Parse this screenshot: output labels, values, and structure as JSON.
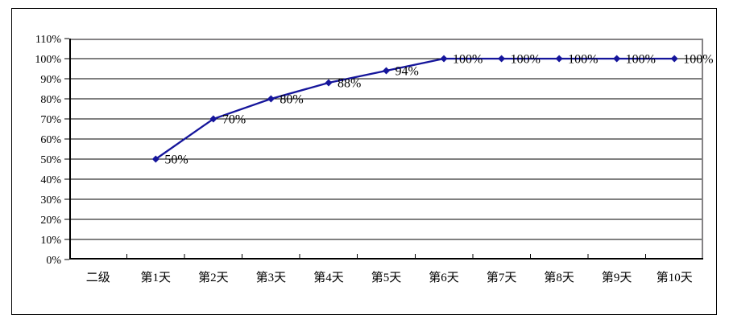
{
  "chart_data": {
    "type": "line",
    "title": "",
    "xlabel": "",
    "ylabel": "",
    "categories": [
      "二级",
      "第1天",
      "第2天",
      "第3天",
      "第4天",
      "第5天",
      "第6天",
      "第7天",
      "第8天",
      "第9天",
      "第10天"
    ],
    "series": [
      {
        "name": "",
        "values": [
          null,
          50,
          70,
          80,
          88,
          94,
          100,
          100,
          100,
          100,
          100
        ],
        "labels": [
          "",
          "50%",
          "70%",
          "80%",
          "88%",
          "94%",
          "100%",
          "100%",
          "100%",
          "100%",
          "100%"
        ]
      }
    ],
    "y_ticks": [
      0,
      10,
      20,
      30,
      40,
      50,
      60,
      70,
      80,
      90,
      100,
      110
    ],
    "y_tick_labels": [
      "0%",
      "10%",
      "20%",
      "30%",
      "40%",
      "50%",
      "60%",
      "70%",
      "80%",
      "90%",
      "100%",
      "110%"
    ],
    "ylim": [
      0,
      110
    ],
    "grid": true,
    "legend": "none",
    "colors": {
      "line": "#15159b",
      "marker": "#15159b",
      "gridline": "#000000",
      "axis": "#000000",
      "plot_border": "#848284",
      "chart_border": "#000000",
      "label_text": "#000000",
      "background": "#ffffff"
    }
  }
}
